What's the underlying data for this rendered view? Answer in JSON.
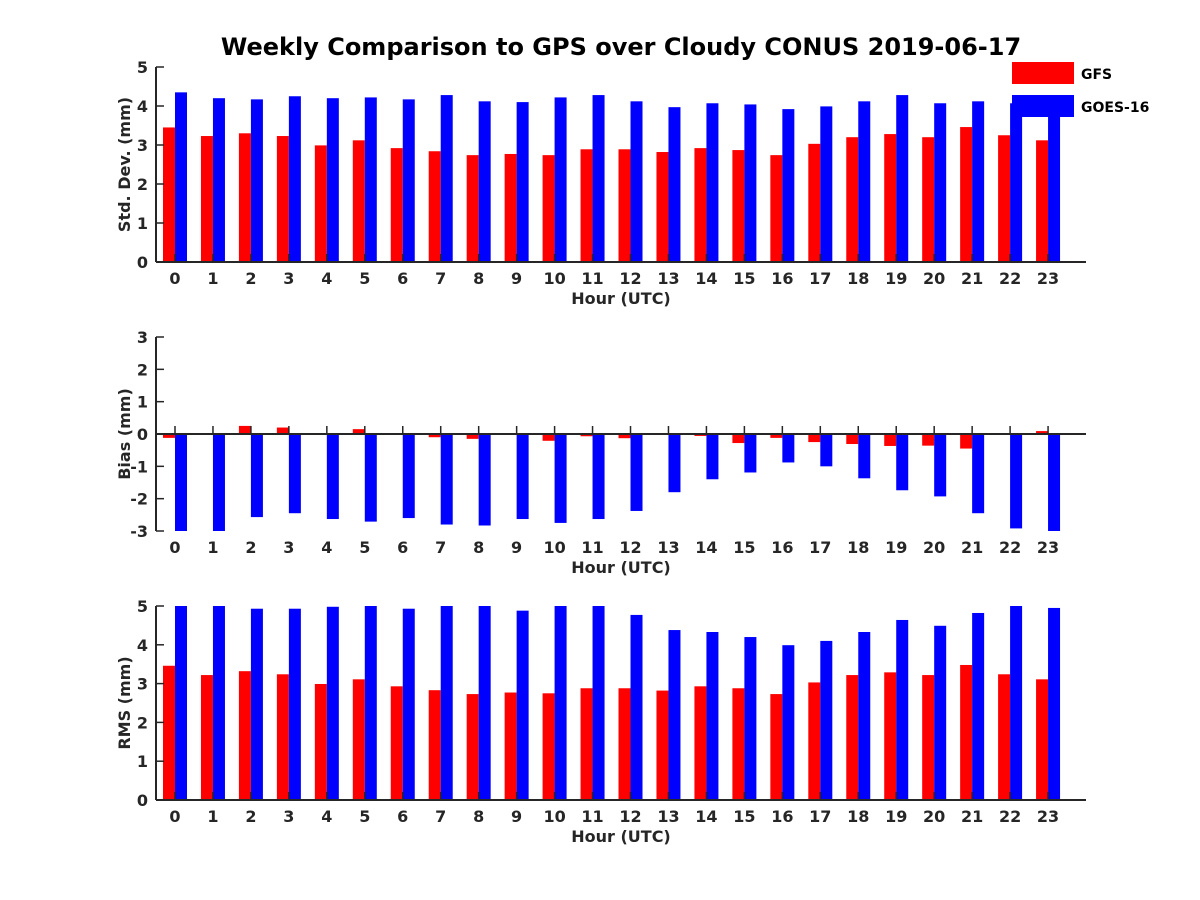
{
  "figure_title": "Weekly Comparison to GPS over Cloudy CONUS 2019-06-17",
  "legend": {
    "entries": [
      {
        "label": "GFS",
        "color": "#ff0000"
      },
      {
        "label": "GOES-16",
        "color": "#0000ff"
      }
    ]
  },
  "chart_data": [
    {
      "type": "bar",
      "ylabel": "Std. Dev. (mm)",
      "xlabel": "Hour (UTC)",
      "ylim": [
        0,
        5
      ],
      "yticks": [
        0,
        1,
        2,
        3,
        4,
        5
      ],
      "categories": [
        "0",
        "1",
        "2",
        "3",
        "4",
        "5",
        "6",
        "7",
        "8",
        "9",
        "10",
        "11",
        "12",
        "13",
        "14",
        "15",
        "16",
        "17",
        "18",
        "19",
        "20",
        "21",
        "22",
        "23"
      ],
      "series": [
        {
          "name": "GFS",
          "color": "#ff0000",
          "values": [
            3.45,
            3.23,
            3.3,
            3.23,
            2.99,
            3.12,
            2.92,
            2.84,
            2.74,
            2.77,
            2.74,
            2.89,
            2.89,
            2.82,
            2.92,
            2.87,
            2.74,
            3.03,
            3.2,
            3.28,
            3.2,
            3.46,
            3.25,
            3.12
          ]
        },
        {
          "name": "GOES-16",
          "color": "#0000ff",
          "values": [
            4.35,
            4.2,
            4.17,
            4.25,
            4.2,
            4.22,
            4.17,
            4.28,
            4.12,
            4.1,
            4.22,
            4.28,
            4.12,
            3.97,
            4.07,
            4.04,
            3.92,
            3.99,
            4.12,
            4.28,
            4.07,
            4.12,
            4.07,
            3.94
          ]
        }
      ]
    },
    {
      "type": "bar",
      "ylabel": "Bias (mm)",
      "xlabel": "Hour (UTC)",
      "ylim": [
        -3,
        3
      ],
      "yticks": [
        -3,
        -2,
        -1,
        0,
        1,
        2,
        3
      ],
      "categories": [
        "0",
        "1",
        "2",
        "3",
        "4",
        "5",
        "6",
        "7",
        "8",
        "9",
        "10",
        "11",
        "12",
        "13",
        "14",
        "15",
        "16",
        "17",
        "18",
        "19",
        "20",
        "21",
        "22",
        "23"
      ],
      "series": [
        {
          "name": "GFS",
          "color": "#ff0000",
          "values": [
            -0.12,
            0.02,
            0.25,
            0.2,
            -0.03,
            0.15,
            -0.03,
            -0.1,
            -0.15,
            -0.03,
            -0.21,
            -0.07,
            -0.13,
            0.02,
            -0.06,
            -0.28,
            -0.12,
            -0.25,
            -0.31,
            -0.37,
            -0.36,
            -0.45,
            -0.02,
            0.09
          ]
        },
        {
          "name": "GOES-16",
          "color": "#0000ff",
          "values": [
            -3.0,
            -3.0,
            -2.57,
            -2.45,
            -2.63,
            -2.71,
            -2.6,
            -2.8,
            -2.83,
            -2.63,
            -2.75,
            -2.63,
            -2.38,
            -1.8,
            -1.4,
            -1.19,
            -0.88,
            -1.0,
            -1.37,
            -1.74,
            -1.93,
            -2.45,
            -2.92,
            -3.0
          ]
        }
      ]
    },
    {
      "type": "bar",
      "ylabel": "RMS (mm)",
      "xlabel": "Hour (UTC)",
      "ylim": [
        0,
        5
      ],
      "yticks": [
        0,
        1,
        2,
        3,
        4,
        5
      ],
      "categories": [
        "0",
        "1",
        "2",
        "3",
        "4",
        "5",
        "6",
        "7",
        "8",
        "9",
        "10",
        "11",
        "12",
        "13",
        "14",
        "15",
        "16",
        "17",
        "18",
        "19",
        "20",
        "21",
        "22",
        "23"
      ],
      "series": [
        {
          "name": "GFS",
          "color": "#ff0000",
          "values": [
            3.46,
            3.22,
            3.32,
            3.24,
            2.99,
            3.11,
            2.93,
            2.83,
            2.73,
            2.77,
            2.75,
            2.88,
            2.88,
            2.82,
            2.93,
            2.88,
            2.73,
            3.03,
            3.22,
            3.29,
            3.22,
            3.48,
            3.24,
            3.11
          ]
        },
        {
          "name": "GOES-16",
          "color": "#0000ff",
          "values": [
            5.0,
            5.0,
            4.93,
            4.93,
            4.98,
            5.0,
            4.93,
            5.0,
            5.0,
            4.88,
            5.0,
            5.0,
            4.77,
            4.38,
            4.33,
            4.2,
            3.99,
            4.1,
            4.33,
            4.64,
            4.49,
            4.82,
            5.0,
            4.95
          ]
        }
      ]
    }
  ]
}
